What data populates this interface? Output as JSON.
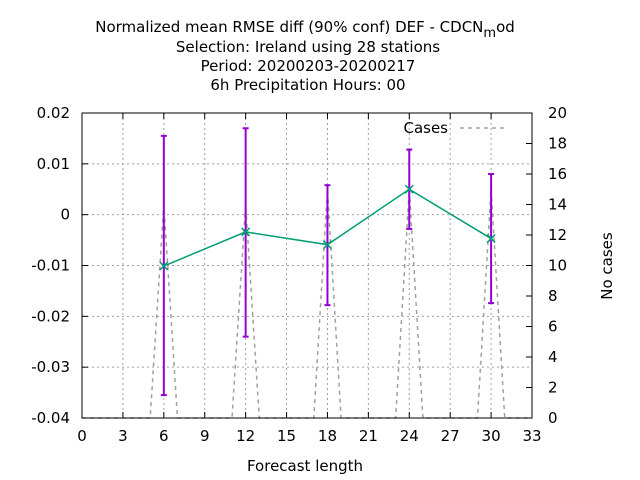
{
  "chart_data": {
    "type": "line",
    "title_lines": [
      "Normalized mean RMSE diff (90% conf) DEF - CDCN",
      "Selection: Ireland using    28 stations",
      "Period: 20200203-20200217",
      "6h Precipitation   Hours:  00"
    ],
    "title_sub": "m",
    "title_tail": "od",
    "xlabel": "Forecast length",
    "ylabel_right": "No cases",
    "xlim": [
      0,
      33
    ],
    "ylim_left": [
      -0.04,
      0.02
    ],
    "ylim_right": [
      0,
      20
    ],
    "x_ticks": [
      "0",
      "3",
      "6",
      "9",
      "12",
      "15",
      "18",
      "21",
      "24",
      "27",
      "30",
      "33"
    ],
    "y_ticks_left": [
      "-0.04",
      "-0.03",
      "-0.02",
      "-0.01",
      "0",
      "0.01",
      "0.02"
    ],
    "y_ticks_right": [
      "0",
      "2",
      "4",
      "6",
      "8",
      "10",
      "12",
      "14",
      "16",
      "18",
      "20"
    ],
    "grid": true,
    "legend_position": "top-right",
    "series": [
      {
        "kind": "line",
        "color": "#009e73",
        "x": [
          6,
          12,
          18,
          24,
          30
        ],
        "y": [
          -0.0101,
          -0.0034,
          -0.0059,
          0.005,
          -0.0047
        ]
      },
      {
        "kind": "errorbar",
        "color": "#9400d3",
        "x": [
          6,
          12,
          18,
          24,
          30
        ],
        "low": [
          -0.0355,
          -0.024,
          -0.0178,
          -0.0028,
          -0.0174
        ],
        "high": [
          0.0155,
          0.017,
          0.0058,
          0.0128,
          0.008
        ]
      },
      {
        "kind": "cases",
        "name": "Cases",
        "color": "#a0a0a0",
        "x": [
          0,
          5,
          6,
          7,
          11,
          12,
          13,
          17,
          18,
          19,
          23,
          24,
          25,
          29,
          30,
          31,
          33
        ],
        "y": [
          0,
          0,
          14,
          0,
          0,
          14,
          0,
          0,
          15,
          0,
          0,
          15,
          0,
          0,
          15,
          0,
          0
        ]
      }
    ]
  }
}
